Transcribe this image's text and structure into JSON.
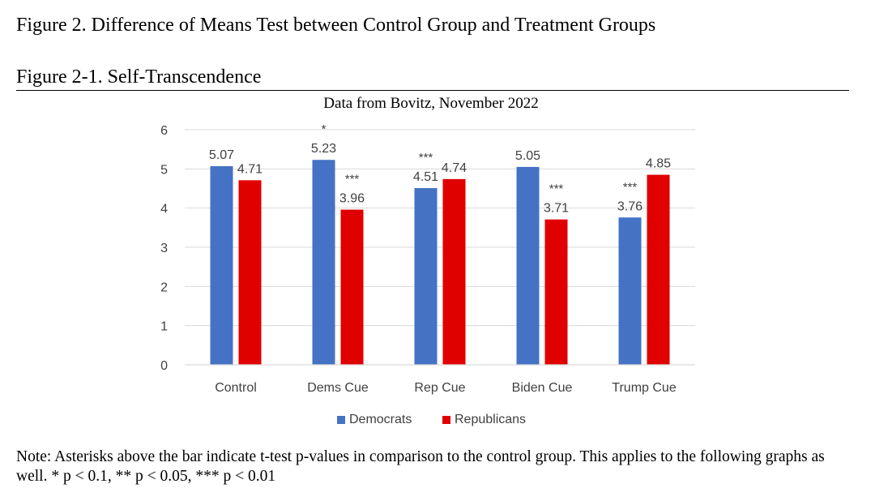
{
  "figure_title": "Figure 2. Difference of Means Test between Control Group and Treatment Groups",
  "figure_subtitle": "Figure 2-1. Self-Transcendence",
  "note": "Note: Asterisks above the bar indicate t-test p-values in comparison to the control group. This applies to the following graphs as well. * p < 0.1, ** p < 0.05, *** p < 0.01",
  "colors": {
    "democrats": "#4472C4",
    "republicans": "#E00000",
    "grid": "#D9D9D9",
    "text": "#404040"
  },
  "chart_data": {
    "type": "bar",
    "title": "Data from Bovitz, November 2022",
    "xlabel": "",
    "ylabel": "",
    "ylim": [
      0,
      6
    ],
    "yticks": [
      0,
      1,
      2,
      3,
      4,
      5,
      6
    ],
    "grid": true,
    "legend_position": "bottom",
    "categories": [
      "Control",
      "Dems Cue",
      "Rep Cue",
      "Biden Cue",
      "Trump Cue"
    ],
    "series": [
      {
        "name": "Democrats",
        "values": [
          5.07,
          5.23,
          4.51,
          5.05,
          3.76
        ],
        "labels": [
          "5.07",
          "5.23",
          "4.51",
          "5.05",
          "3.76"
        ],
        "significance": [
          "",
          "*",
          "***",
          "",
          "***"
        ]
      },
      {
        "name": "Republicans",
        "values": [
          4.71,
          3.96,
          4.74,
          3.71,
          4.85
        ],
        "labels": [
          "4.71",
          "3.96",
          "4.74",
          "3.71",
          "4.85"
        ],
        "significance": [
          "",
          "***",
          "",
          "***",
          ""
        ]
      }
    ]
  }
}
